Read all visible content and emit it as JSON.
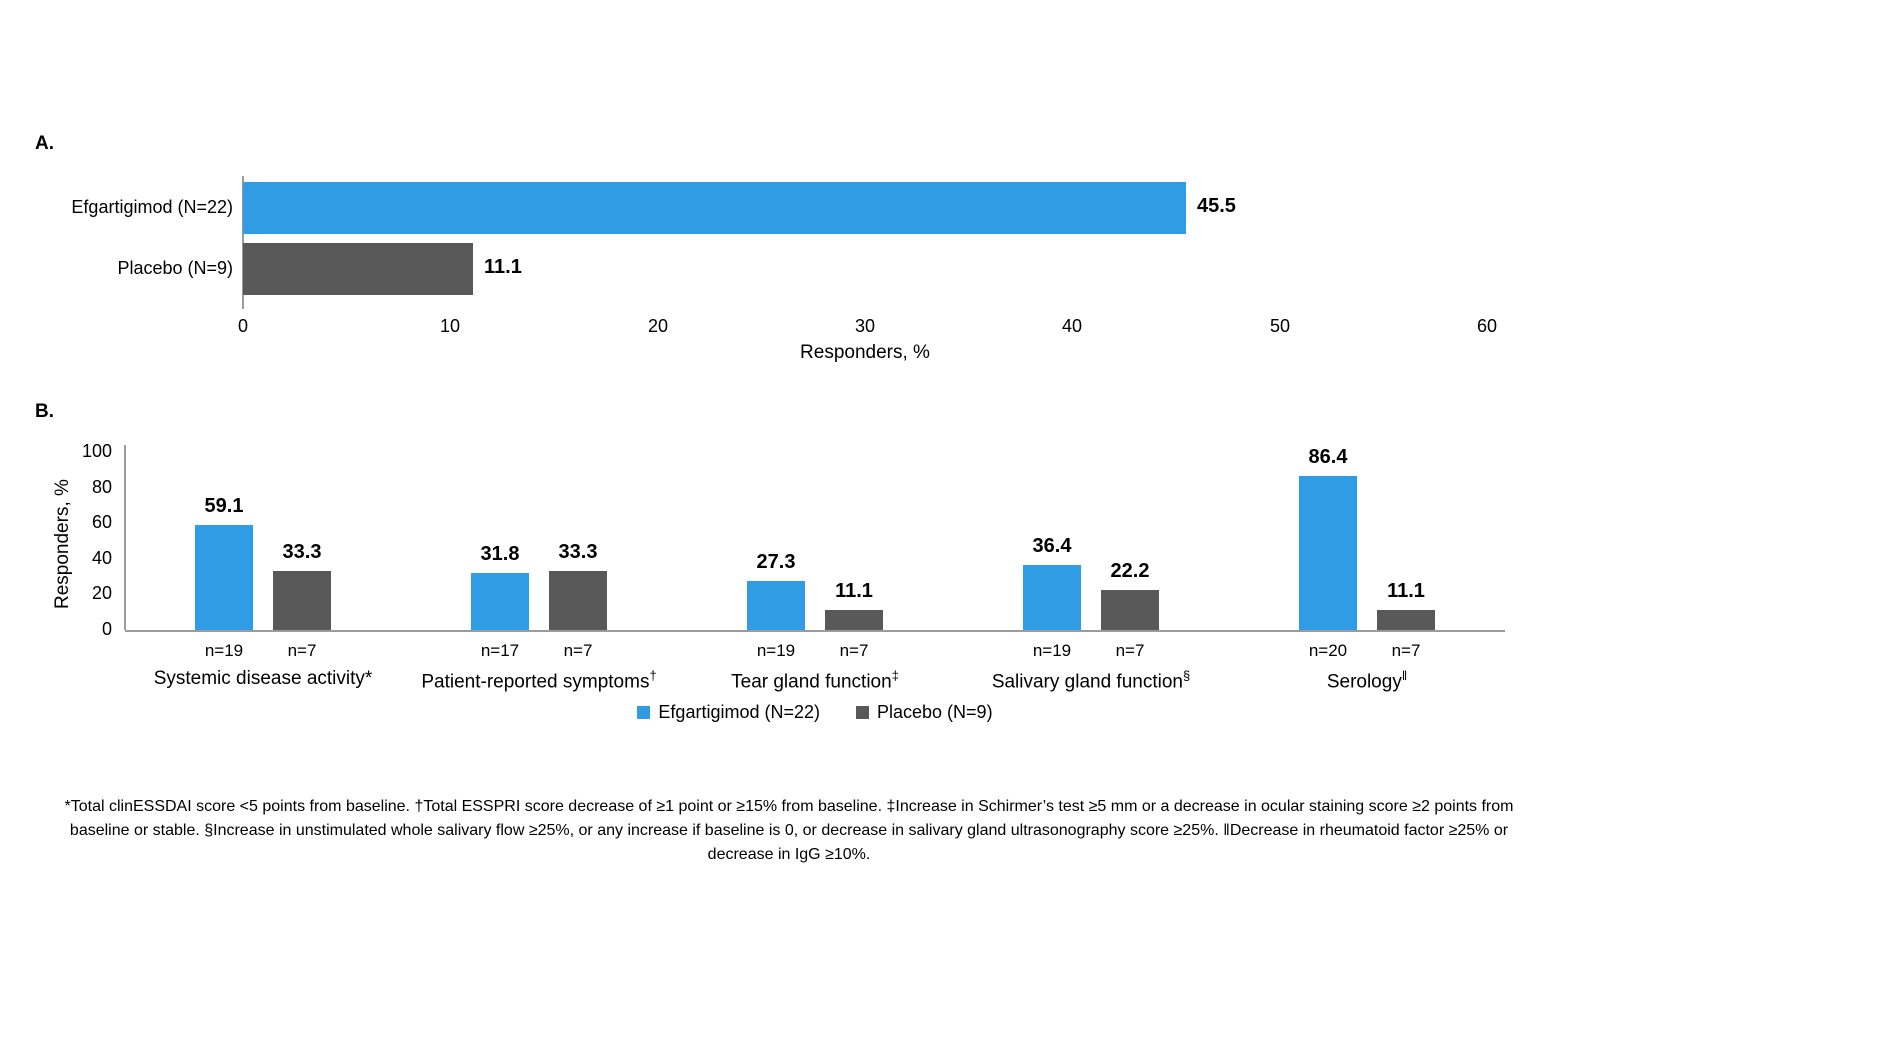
{
  "chart_data": [
    {
      "panel_label": "A.",
      "type": "bar",
      "orientation": "horizontal",
      "categories": [
        "Efgartigimod (N=22)",
        "Placebo (N=9)"
      ],
      "values": [
        45.5,
        11.1
      ],
      "value_labels": [
        "45.5",
        "11.1"
      ],
      "colors": [
        "#2F9CE3",
        "#595959"
      ],
      "xlabel": "Responders, %",
      "xlim": [
        0,
        60
      ],
      "xticks": [
        0,
        10,
        20,
        30,
        40,
        50,
        60
      ],
      "grid": false
    },
    {
      "panel_label": "B.",
      "type": "bar",
      "orientation": "vertical",
      "categories": [
        "Systemic disease activity*",
        "Patient-reported symptoms†",
        "Tear gland function‡",
        "Salivary gland function§",
        "Serology‖"
      ],
      "series": [
        {
          "name": "Efgartigimod (N=22)",
          "color": "#2F9CE3",
          "values": [
            59.1,
            31.8,
            27.3,
            36.4,
            86.4
          ],
          "n_labels": [
            "n=19",
            "n=17",
            "n=19",
            "n=19",
            "n=20"
          ]
        },
        {
          "name": "Placebo (N=9)",
          "color": "#595959",
          "values": [
            33.3,
            33.3,
            11.1,
            22.2,
            11.1
          ],
          "n_labels": [
            "n=7",
            "n=7",
            "n=7",
            "n=7",
            "n=7"
          ]
        }
      ],
      "ylabel": "Responders, %",
      "ylim": [
        0,
        100
      ],
      "yticks": [
        0,
        20,
        40,
        60,
        80,
        100
      ],
      "legend_position": "bottom",
      "grid": false
    }
  ],
  "footnote": {
    "text": "*Total clinESSDAI score <5 points from baseline. †Total ESSPRI score decrease of ≥1 point or ≥15% from baseline. ‡Increase in Schirmer’s test ≥5 mm or a decrease in ocular staining score ≥2 points from baseline or stable. §Increase in unstimulated whole salivary flow ≥25%, or any increase if baseline is 0, or decrease in salivary gland ultrasonography score ≥25%. ‖Decrease in rheumatoid factor ≥25% or decrease in IgG ≥10%."
  }
}
